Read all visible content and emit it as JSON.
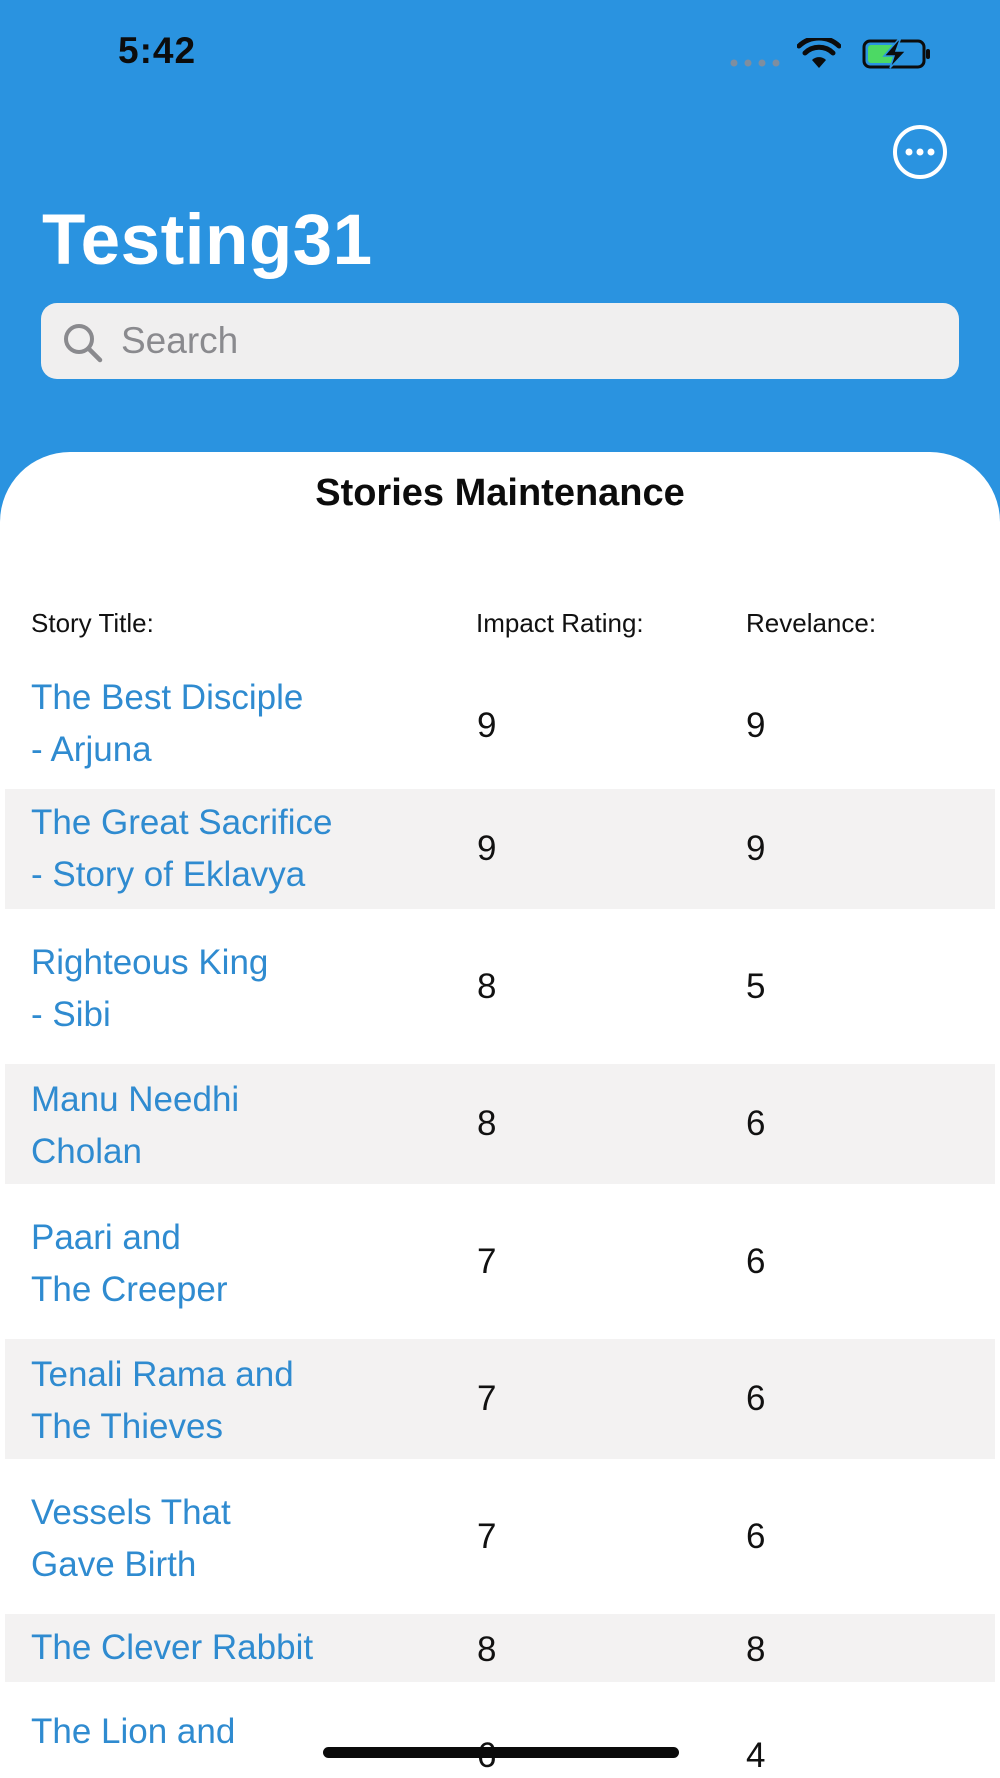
{
  "status_bar": {
    "time": "5:42",
    "icons": [
      "signal-icon",
      "wifi-icon",
      "battery-charging-icon"
    ],
    "battery_color": "#4cd964"
  },
  "header": {
    "title": "Testing31",
    "more_icon": "ellipsis-circle-icon",
    "background_color": "#2a93e0"
  },
  "search": {
    "placeholder": "Search",
    "value": ""
  },
  "sheet": {
    "title": "Stories Maintenance",
    "columns": {
      "title": "Story Title:",
      "impact": "Impact Rating:",
      "relevance": "Revelance:"
    },
    "rows": [
      {
        "title": "The Best Disciple\n- Arjuna",
        "impact": "9",
        "relevance": "9"
      },
      {
        "title": "The Great Sacrifice\n- Story of Eklavya",
        "impact": "9",
        "relevance": "9"
      },
      {
        "title": "Righteous King\n- Sibi",
        "impact": "8",
        "relevance": "5"
      },
      {
        "title": "Manu Needhi\nCholan",
        "impact": "8",
        "relevance": "6"
      },
      {
        "title": "Paari and\nThe Creeper",
        "impact": "7",
        "relevance": "6"
      },
      {
        "title": "Tenali Rama and\nThe Thieves",
        "impact": "7",
        "relevance": "6"
      },
      {
        "title": "Vessels That\nGave Birth",
        "impact": "7",
        "relevance": "6"
      },
      {
        "title": "The Clever Rabbit",
        "impact": "8",
        "relevance": "8"
      },
      {
        "title": "The Lion and",
        "impact": "6",
        "relevance": "4"
      }
    ],
    "link_color": "#2f8bd0",
    "alt_row_color": "#f3f2f2"
  }
}
